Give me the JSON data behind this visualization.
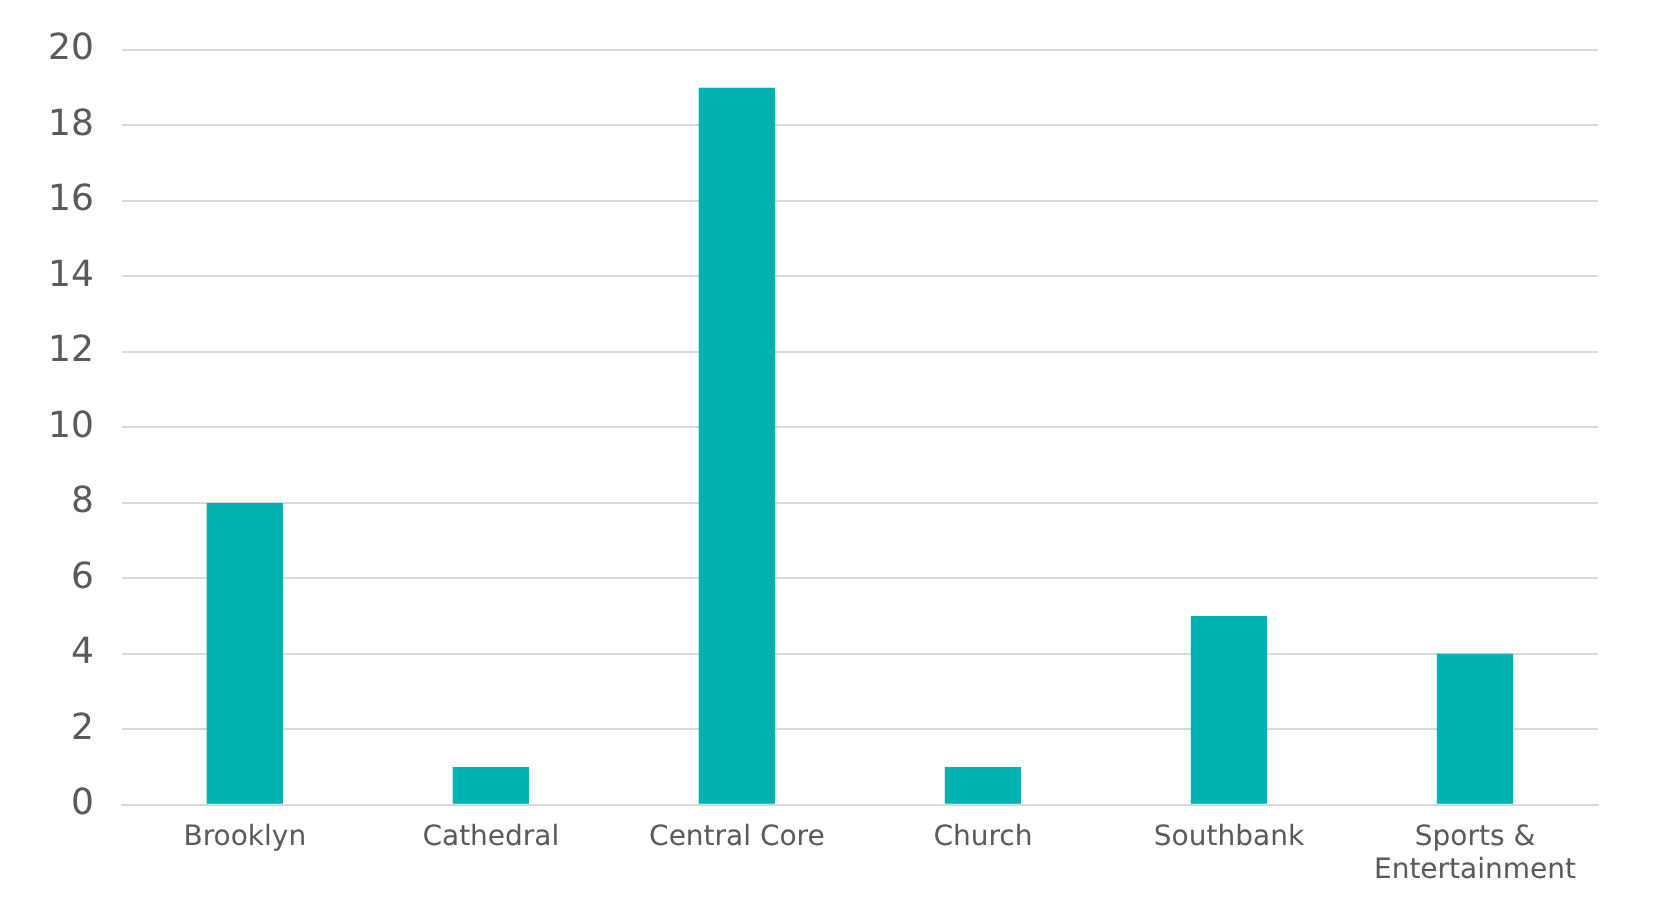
{
  "chart_data": {
    "type": "bar",
    "categories": [
      "Brooklyn",
      "Cathedral",
      "Central Core",
      "Church",
      "Southbank",
      "Sports & Entertainment"
    ],
    "values": [
      8,
      1,
      19,
      1,
      5,
      4
    ],
    "color": "#00b2ae",
    "ylim": [
      0,
      20
    ],
    "yticks": [
      0,
      2,
      4,
      6,
      8,
      10,
      12,
      14,
      16,
      18,
      20
    ],
    "grid": "y"
  }
}
